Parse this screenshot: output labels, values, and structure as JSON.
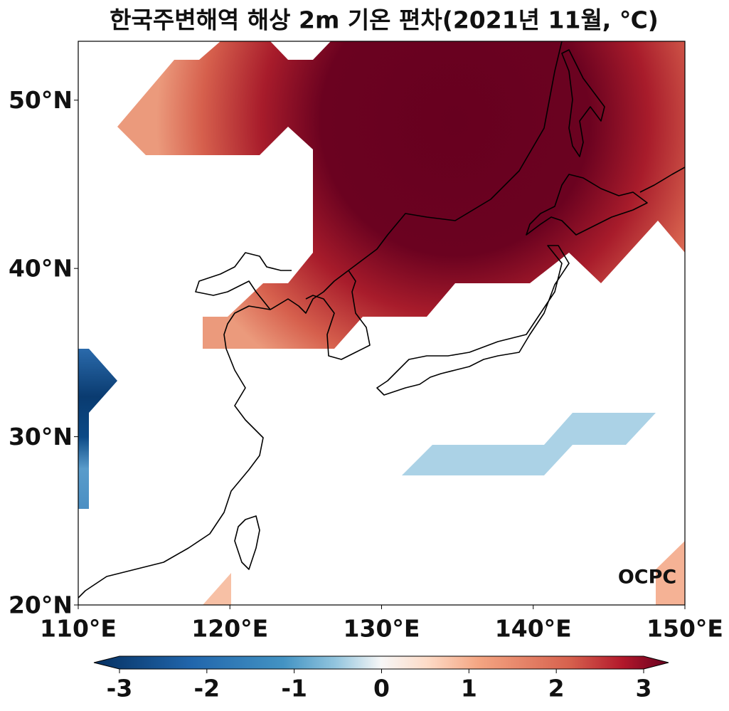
{
  "title": "한국주변해역 해상 2m 기온 편차(2021년 11월, ℃)",
  "map": {
    "lon_lim": [
      110,
      150
    ],
    "lat_lim": [
      20,
      53.5
    ],
    "lon_ticks": [
      {
        "value": 110,
        "label": "110°E"
      },
      {
        "value": 120,
        "label": "120°E"
      },
      {
        "value": 130,
        "label": "130°E"
      },
      {
        "value": 140,
        "label": "140°E"
      },
      {
        "value": 150,
        "label": "150°E"
      }
    ],
    "lat_ticks": [
      {
        "value": 20,
        "label": "20°N"
      },
      {
        "value": 30,
        "label": "30°N"
      },
      {
        "value": 40,
        "label": "40°N"
      },
      {
        "value": 50,
        "label": "50°N"
      }
    ]
  },
  "colorbar": {
    "lim": [
      -3,
      3
    ],
    "ticks": [
      -3,
      -2,
      -1,
      0,
      1,
      2,
      3
    ]
  },
  "logo": "OCPC"
}
